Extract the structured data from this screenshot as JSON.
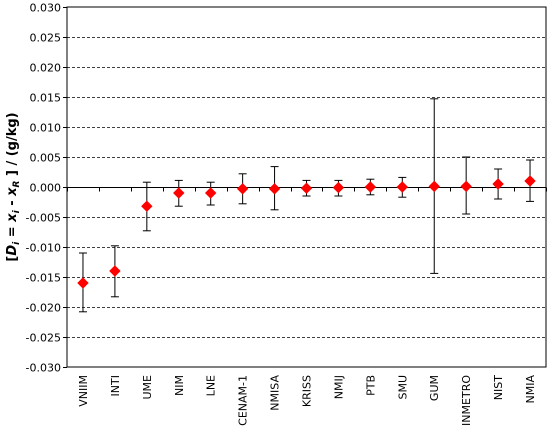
{
  "chart_data": {
    "type": "scatter",
    "ylabel": {
      "part1": "[",
      "d": "D",
      "sub_i": "i",
      "mid": " = ",
      "x": "x",
      "sub_i2": "i",
      "minus": " - ",
      "x2": "x",
      "sub_R": "R",
      "part2": " ] / (g/kg)"
    },
    "ylim": [
      -0.03,
      0.03
    ],
    "ytick_step": 0.005,
    "ytick_labels": [
      "0.030",
      "0.025",
      "0.020",
      "0.015",
      "0.010",
      "0.005",
      "0.000",
      "-0.005",
      "-0.010",
      "-0.015",
      "-0.020",
      "-0.025",
      "-0.030"
    ],
    "gridlines": "horizontal-dashed",
    "marker_color": "#ff0000",
    "marker_shape": "diamond",
    "categories": [
      "VNIIM",
      "INTI",
      "UME",
      "NIM",
      "LNE",
      "CENAM-1",
      "NMISA",
      "KRISS",
      "NMIJ",
      "PTB",
      "SMU",
      "GUM",
      "INMETRO",
      "NIST",
      "NMIA"
    ],
    "values": [
      -0.016,
      -0.014,
      -0.0032,
      -0.001,
      -0.001,
      -0.0003,
      -0.0003,
      -0.0002,
      -0.0001,
      0.0,
      0.0,
      0.0001,
      0.0001,
      0.0005,
      0.001
    ],
    "err_low": [
      -0.0208,
      -0.0183,
      -0.0073,
      -0.0032,
      -0.003,
      -0.0028,
      -0.0038,
      -0.0015,
      -0.0015,
      -0.0013,
      -0.0017,
      -0.0144,
      -0.0045,
      -0.002,
      -0.0024
    ],
    "err_high": [
      -0.011,
      -0.0098,
      0.0008,
      0.0011,
      0.0008,
      0.0022,
      0.0034,
      0.0011,
      0.0011,
      0.0013,
      0.0016,
      0.0147,
      0.005,
      0.003,
      0.0045
    ]
  }
}
